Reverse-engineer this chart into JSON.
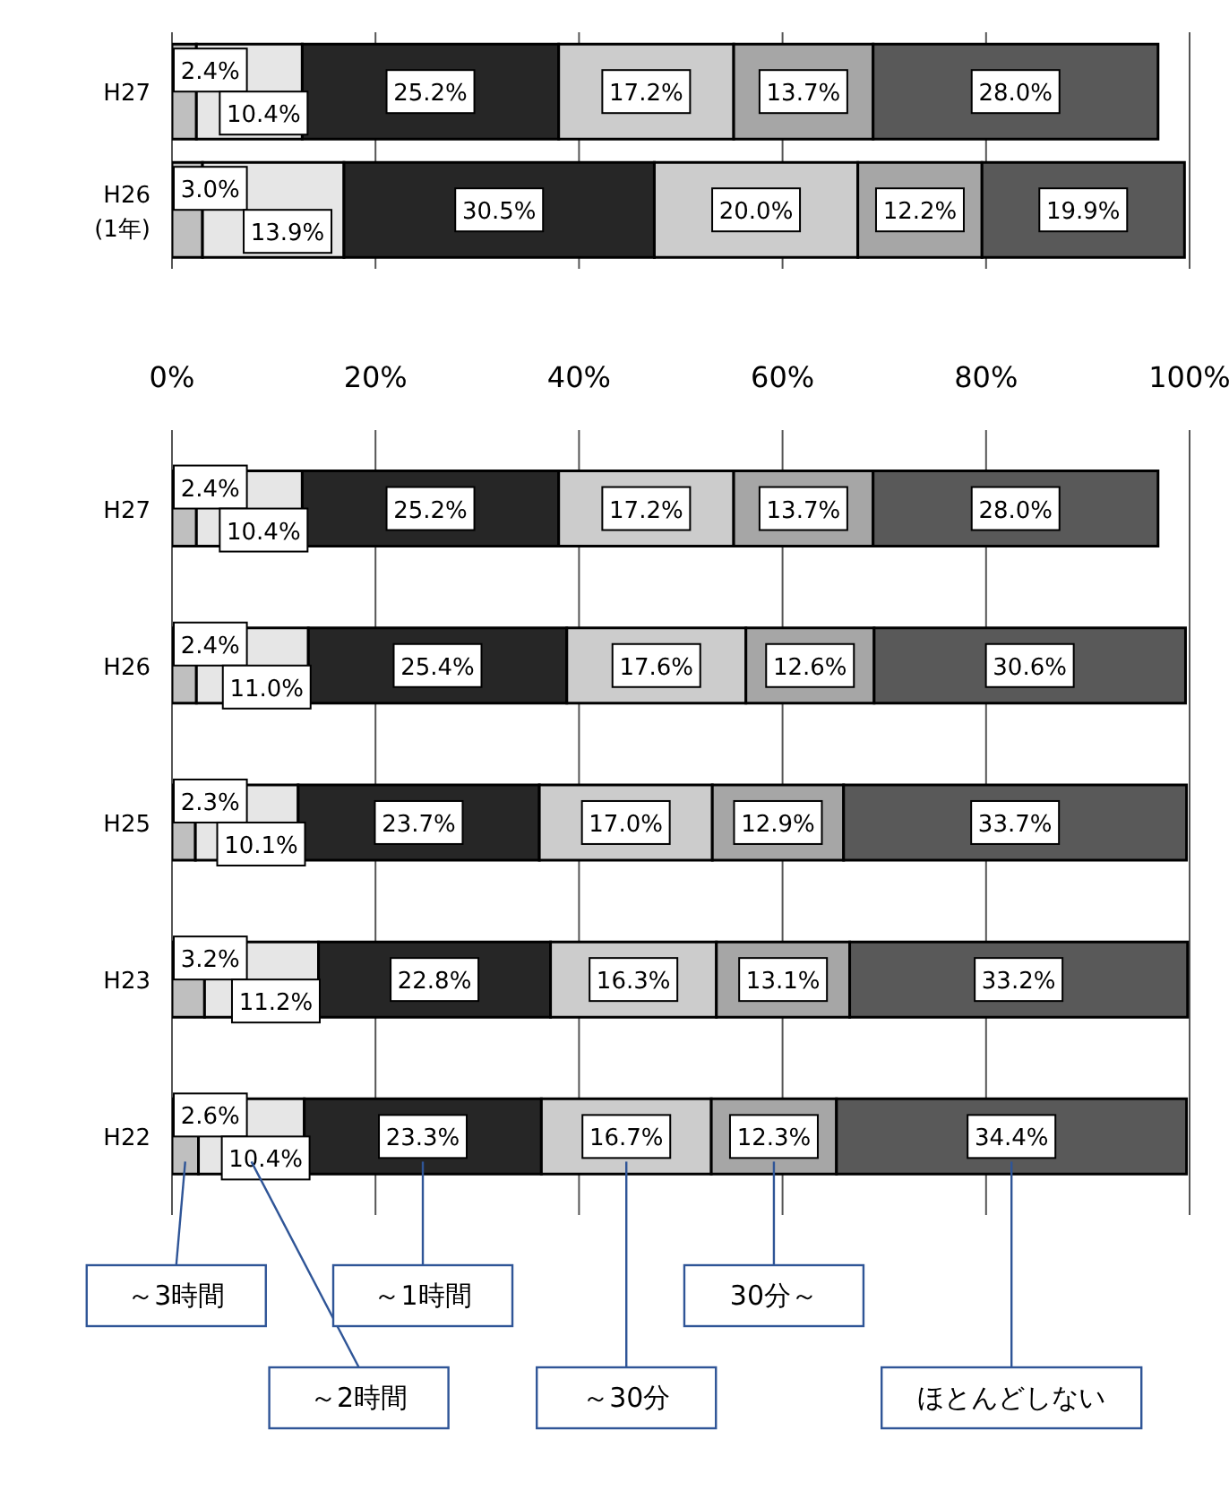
{
  "chart_data": [
    {
      "type": "bar",
      "orientation": "horizontal",
      "stacked": true,
      "categories": [
        "H27",
        "H26\n(1年)"
      ],
      "series": [
        {
          "color": "#bfbfbf",
          "values": [
            2.4,
            3.0
          ],
          "value_labels": [
            "2.4%",
            "3.0%"
          ]
        },
        {
          "color": "#e6e6e6",
          "values": [
            10.4,
            13.9
          ],
          "value_labels": [
            "10.4%",
            "13.9%"
          ]
        },
        {
          "color": "#262626",
          "values": [
            25.2,
            30.5
          ],
          "value_labels": [
            "25.2%",
            "30.5%"
          ]
        },
        {
          "color": "#cccccc",
          "values": [
            17.2,
            20.0
          ],
          "value_labels": [
            "17.2%",
            "20.0%"
          ]
        },
        {
          "color": "#a6a6a6",
          "values": [
            13.7,
            12.2
          ],
          "value_labels": [
            "13.7%",
            "12.2%"
          ]
        },
        {
          "color": "#595959",
          "values": [
            28.0,
            19.9
          ],
          "value_labels": [
            "28.0%",
            "19.9%"
          ]
        }
      ],
      "xlim": [
        0,
        100
      ],
      "xticks": [
        {
          "value": 0,
          "label": "0%"
        },
        {
          "value": 20,
          "label": "20%"
        },
        {
          "value": 40,
          "label": "40%"
        },
        {
          "value": 60,
          "label": "60%"
        },
        {
          "value": 80,
          "label": "80%"
        },
        {
          "value": 100,
          "label": "100%"
        }
      ],
      "grid": "x"
    },
    {
      "type": "bar",
      "orientation": "horizontal",
      "stacked": true,
      "categories": [
        "H27",
        "H26",
        "H25",
        "H23",
        "H22"
      ],
      "series": [
        {
          "name": "～3時間",
          "color": "#bfbfbf",
          "values": [
            2.4,
            2.4,
            2.3,
            3.2,
            2.6
          ],
          "value_labels": [
            "2.4%",
            "2.4%",
            "2.3%",
            "3.2%",
            "2.6%"
          ]
        },
        {
          "name": "～2時間",
          "color": "#e6e6e6",
          "values": [
            10.4,
            11.0,
            10.1,
            11.2,
            10.4
          ],
          "value_labels": [
            "10.4%",
            "11.0%",
            "10.1%",
            "11.2%",
            "10.4%"
          ]
        },
        {
          "name": "～1時間",
          "color": "#262626",
          "values": [
            25.2,
            25.4,
            23.7,
            22.8,
            23.3
          ],
          "value_labels": [
            "25.2%",
            "25.4%",
            "23.7%",
            "22.8%",
            "23.3%"
          ]
        },
        {
          "name": "～30分",
          "color": "#cccccc",
          "values": [
            17.2,
            17.6,
            17.0,
            16.3,
            16.7
          ],
          "value_labels": [
            "17.2%",
            "17.6%",
            "17.0%",
            "16.3%",
            "16.7%"
          ]
        },
        {
          "name": "30分～",
          "color": "#a6a6a6",
          "values": [
            13.7,
            12.6,
            12.9,
            13.1,
            12.3
          ],
          "value_labels": [
            "13.7%",
            "12.6%",
            "12.9%",
            "13.1%",
            "12.3%"
          ]
        },
        {
          "name": "ほとんどしない",
          "color": "#595959",
          "values": [
            28.0,
            30.6,
            33.7,
            33.2,
            34.4
          ],
          "value_labels": [
            "28.0%",
            "30.6%",
            "33.7%",
            "33.2%",
            "34.4%"
          ]
        }
      ],
      "xlim": [
        0,
        100
      ],
      "xticks": [
        0,
        20,
        40,
        60,
        80,
        100
      ],
      "tick_labels": "y",
      "grid": "x"
    }
  ]
}
